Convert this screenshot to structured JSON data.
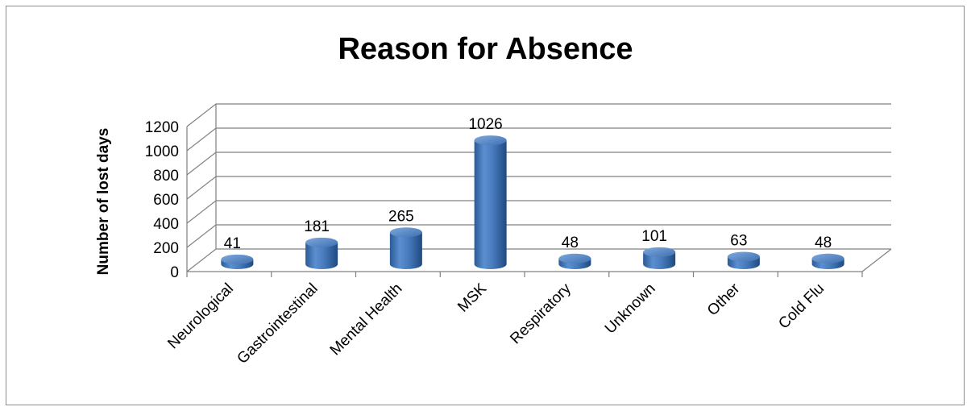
{
  "chart_data": {
    "type": "bar",
    "title": "Reason for Absence",
    "ylabel": "Number of lost days",
    "xlabel": "",
    "categories": [
      "Neurological",
      "Gastrointestinal",
      "Mental Health",
      "MSK",
      "Respiratory",
      "Unknown",
      "Other",
      "Cold Flu"
    ],
    "values": [
      41,
      181,
      265,
      1026,
      48,
      101,
      63,
      48
    ],
    "ylim": [
      0,
      1200
    ],
    "yticks": [
      0,
      200,
      400,
      600,
      800,
      1000,
      1200
    ],
    "grid": true,
    "legend": "none",
    "bar_style": "3d-cylinder",
    "bar_color": "#4f81bd"
  }
}
